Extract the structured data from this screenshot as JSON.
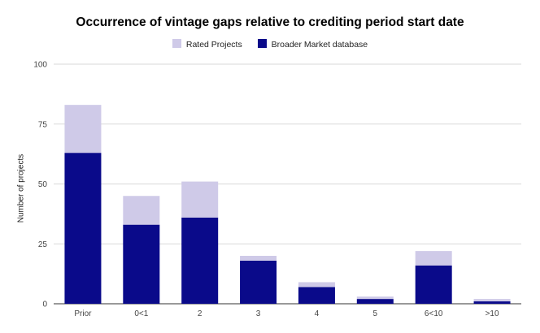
{
  "chart_data": {
    "type": "bar",
    "stacked": true,
    "title": "Occurrence of vintage gaps relative to crediting period start date",
    "xlabel": "",
    "ylabel": "Number of projects",
    "categories": [
      "Prior",
      "0<1",
      "2",
      "3",
      "4",
      "5",
      "6<10",
      ">10"
    ],
    "series": [
      {
        "name": "Broader Market database",
        "color": "#0a0a8a",
        "values": [
          63,
          33,
          36,
          18,
          7,
          2,
          16,
          1
        ]
      },
      {
        "name": "Rated Projects",
        "color": "#cfcae8",
        "values": [
          20,
          12,
          15,
          2,
          2,
          1,
          6,
          1
        ]
      }
    ],
    "legend_order": [
      "Rated Projects",
      "Broader Market database"
    ],
    "legend_position": "top-center",
    "ylim": [
      0,
      100
    ],
    "yticks": [
      "0",
      "25",
      "50",
      "75",
      "100"
    ],
    "grid": true
  }
}
